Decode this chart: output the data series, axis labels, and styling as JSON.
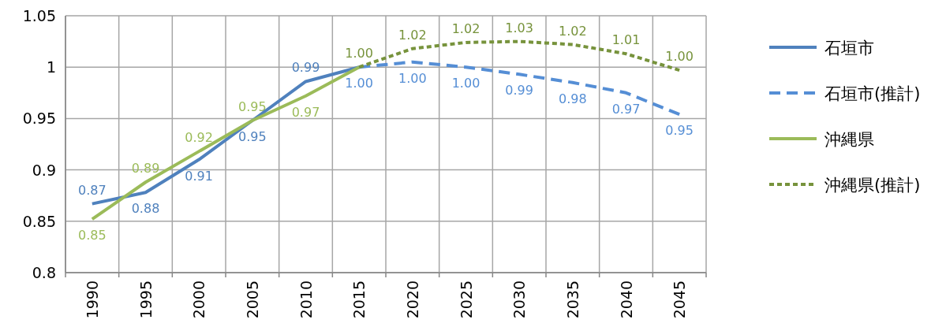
{
  "chart_data": {
    "type": "line",
    "categories": [
      "1990",
      "1995",
      "2000",
      "2005",
      "2010",
      "2015",
      "2020",
      "2025",
      "2030",
      "2035",
      "2040",
      "2045"
    ],
    "ylim": [
      0.8,
      1.05
    ],
    "yticks": [
      0.8,
      0.85,
      0.9,
      0.95,
      1,
      1.05
    ],
    "grid": true,
    "legend": "right",
    "marker": "none",
    "series": [
      {
        "name": "石垣市",
        "color": "#4f81bd",
        "line_style": "solid",
        "values": [
          0.867,
          0.878,
          0.91,
          0.948,
          0.986,
          1.0,
          null,
          null,
          null,
          null,
          null,
          null
        ],
        "value_labels": [
          "0.87",
          "0.88",
          "0.91",
          "0.95",
          "0.99",
          null,
          null,
          null,
          null,
          null,
          null,
          null
        ]
      },
      {
        "name": "石垣市(推計)",
        "color": "#558ed5",
        "line_style": "dashed",
        "values": [
          null,
          null,
          null,
          null,
          null,
          1.0,
          1.005,
          1.0,
          0.993,
          0.985,
          0.975,
          0.954
        ],
        "value_labels": [
          null,
          null,
          null,
          null,
          null,
          "1.00",
          "1.00",
          "1.00",
          "0.99",
          "0.98",
          "0.97",
          "0.95"
        ]
      },
      {
        "name": "沖縄県",
        "color": "#9bbb59",
        "line_style": "solid",
        "values": [
          0.852,
          0.888,
          0.918,
          0.948,
          0.972,
          1.0,
          null,
          null,
          null,
          null,
          null,
          null
        ],
        "value_labels": [
          "0.85",
          "0.89",
          "0.92",
          "0.95",
          "0.97",
          null,
          null,
          null,
          null,
          null,
          null,
          null
        ]
      },
      {
        "name": "沖縄県(推計)",
        "color": "#77933c",
        "line_style": "dotted",
        "values": [
          null,
          null,
          null,
          null,
          null,
          1.0,
          1.018,
          1.024,
          1.025,
          1.022,
          1.013,
          0.997
        ],
        "value_labels": [
          null,
          null,
          null,
          null,
          null,
          "1.00",
          "1.02",
          "1.02",
          "1.03",
          "1.02",
          "1.01",
          "1.00"
        ]
      }
    ]
  }
}
